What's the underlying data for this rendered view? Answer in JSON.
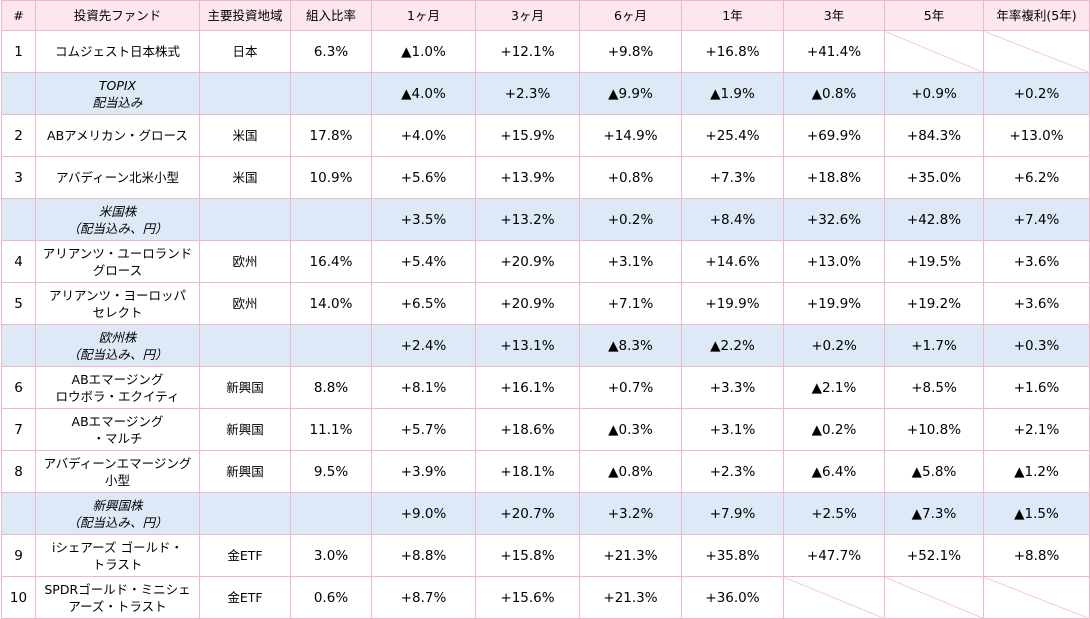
{
  "headers": [
    "#",
    "投資先ファンド",
    "主要投資地域",
    "組入比率",
    "1ヶ月",
    "3ヶ月",
    "6ヶ月",
    "1年",
    "3年",
    "5年",
    "年率複利(5年)"
  ],
  "rows": [
    {
      "kind": "fund",
      "no": "1",
      "name": [
        "コムジェスト日本株式"
      ],
      "region": "日本",
      "ratio": "6.3%",
      "v": [
        "▲1.0%",
        "+12.1%",
        "+9.8%",
        "+16.8%",
        "+41.4%",
        "",
        ""
      ]
    },
    {
      "kind": "bench",
      "name": [
        "TOPIX",
        "配当込み"
      ],
      "v": [
        "▲4.0%",
        "+2.3%",
        "▲9.9%",
        "▲1.9%",
        "▲0.8%",
        "+0.9%",
        "+0.2%"
      ]
    },
    {
      "kind": "fund",
      "no": "2",
      "name": [
        "ABアメリカン・グロース"
      ],
      "region": "米国",
      "ratio": "17.8%",
      "v": [
        "+4.0%",
        "+15.9%",
        "+14.9%",
        "+25.4%",
        "+69.9%",
        "+84.3%",
        "+13.0%"
      ]
    },
    {
      "kind": "fund",
      "no": "3",
      "name": [
        "アバディーン北米小型"
      ],
      "region": "米国",
      "ratio": "10.9%",
      "v": [
        "+5.6%",
        "+13.9%",
        "+0.8%",
        "+7.3%",
        "+18.8%",
        "+35.0%",
        "+6.2%"
      ]
    },
    {
      "kind": "bench",
      "name": [
        "米国株",
        "（配当込み、円）"
      ],
      "v": [
        "+3.5%",
        "+13.2%",
        "+0.2%",
        "+8.4%",
        "+32.6%",
        "+42.8%",
        "+7.4%"
      ]
    },
    {
      "kind": "fund",
      "no": "4",
      "name": [
        "アリアンツ・ユーロランド",
        "グロース"
      ],
      "region": "欧州",
      "ratio": "16.4%",
      "v": [
        "+5.4%",
        "+20.9%",
        "+3.1%",
        "+14.6%",
        "+13.0%",
        "+19.5%",
        "+3.6%"
      ]
    },
    {
      "kind": "fund",
      "no": "5",
      "name": [
        "アリアンツ・ヨーロッパ",
        "セレクト"
      ],
      "region": "欧州",
      "ratio": "14.0%",
      "v": [
        "+6.5%",
        "+20.9%",
        "+7.1%",
        "+19.9%",
        "+19.9%",
        "+19.2%",
        "+3.6%"
      ]
    },
    {
      "kind": "bench",
      "name": [
        "欧州株",
        "（配当込み、円）"
      ],
      "v": [
        "+2.4%",
        "+13.1%",
        "▲8.3%",
        "▲2.2%",
        "+0.2%",
        "+1.7%",
        "+0.3%"
      ]
    },
    {
      "kind": "fund",
      "no": "6",
      "name": [
        "ABエマージング",
        "ロウボラ・エクイティ"
      ],
      "region": "新興国",
      "ratio": "8.8%",
      "v": [
        "+8.1%",
        "+16.1%",
        "+0.7%",
        "+3.3%",
        "▲2.1%",
        "+8.5%",
        "+1.6%"
      ]
    },
    {
      "kind": "fund",
      "no": "7",
      "name": [
        "ABエマージング",
        "・マルチ"
      ],
      "region": "新興国",
      "ratio": "11.1%",
      "v": [
        "+5.7%",
        "+18.6%",
        "▲0.3%",
        "+3.1%",
        "▲0.2%",
        "+10.8%",
        "+2.1%"
      ]
    },
    {
      "kind": "fund",
      "no": "8",
      "name": [
        "アバディーンエマージング",
        "小型"
      ],
      "region": "新興国",
      "ratio": "9.5%",
      "v": [
        "+3.9%",
        "+18.1%",
        "▲0.8%",
        "+2.3%",
        "▲6.4%",
        "▲5.8%",
        "▲1.2%"
      ]
    },
    {
      "kind": "bench",
      "name": [
        "新興国株",
        "（配当込み、円）"
      ],
      "v": [
        "+9.0%",
        "+20.7%",
        "+3.2%",
        "+7.9%",
        "+2.5%",
        "▲7.3%",
        "▲1.5%"
      ]
    },
    {
      "kind": "fund",
      "no": "9",
      "name": [
        "iシェアーズ ゴールド・",
        "トラスト"
      ],
      "region": "金ETF",
      "ratio": "3.0%",
      "v": [
        "+8.8%",
        "+15.8%",
        "+21.3%",
        "+35.8%",
        "+47.7%",
        "+52.1%",
        "+8.8%"
      ]
    },
    {
      "kind": "fund",
      "no": "10",
      "name": [
        "SPDRゴールド・ミニシェ",
        "アーズ・トラスト"
      ],
      "region": "金ETF",
      "ratio": "0.6%",
      "v": [
        "+8.7%",
        "+15.6%",
        "+21.3%",
        "+36.0%",
        "",
        "",
        ""
      ]
    }
  ],
  "colors": {
    "header_bg": "#fde6ee",
    "benchmark_bg": "#dde9f6",
    "grid": "#f0b6c9"
  }
}
